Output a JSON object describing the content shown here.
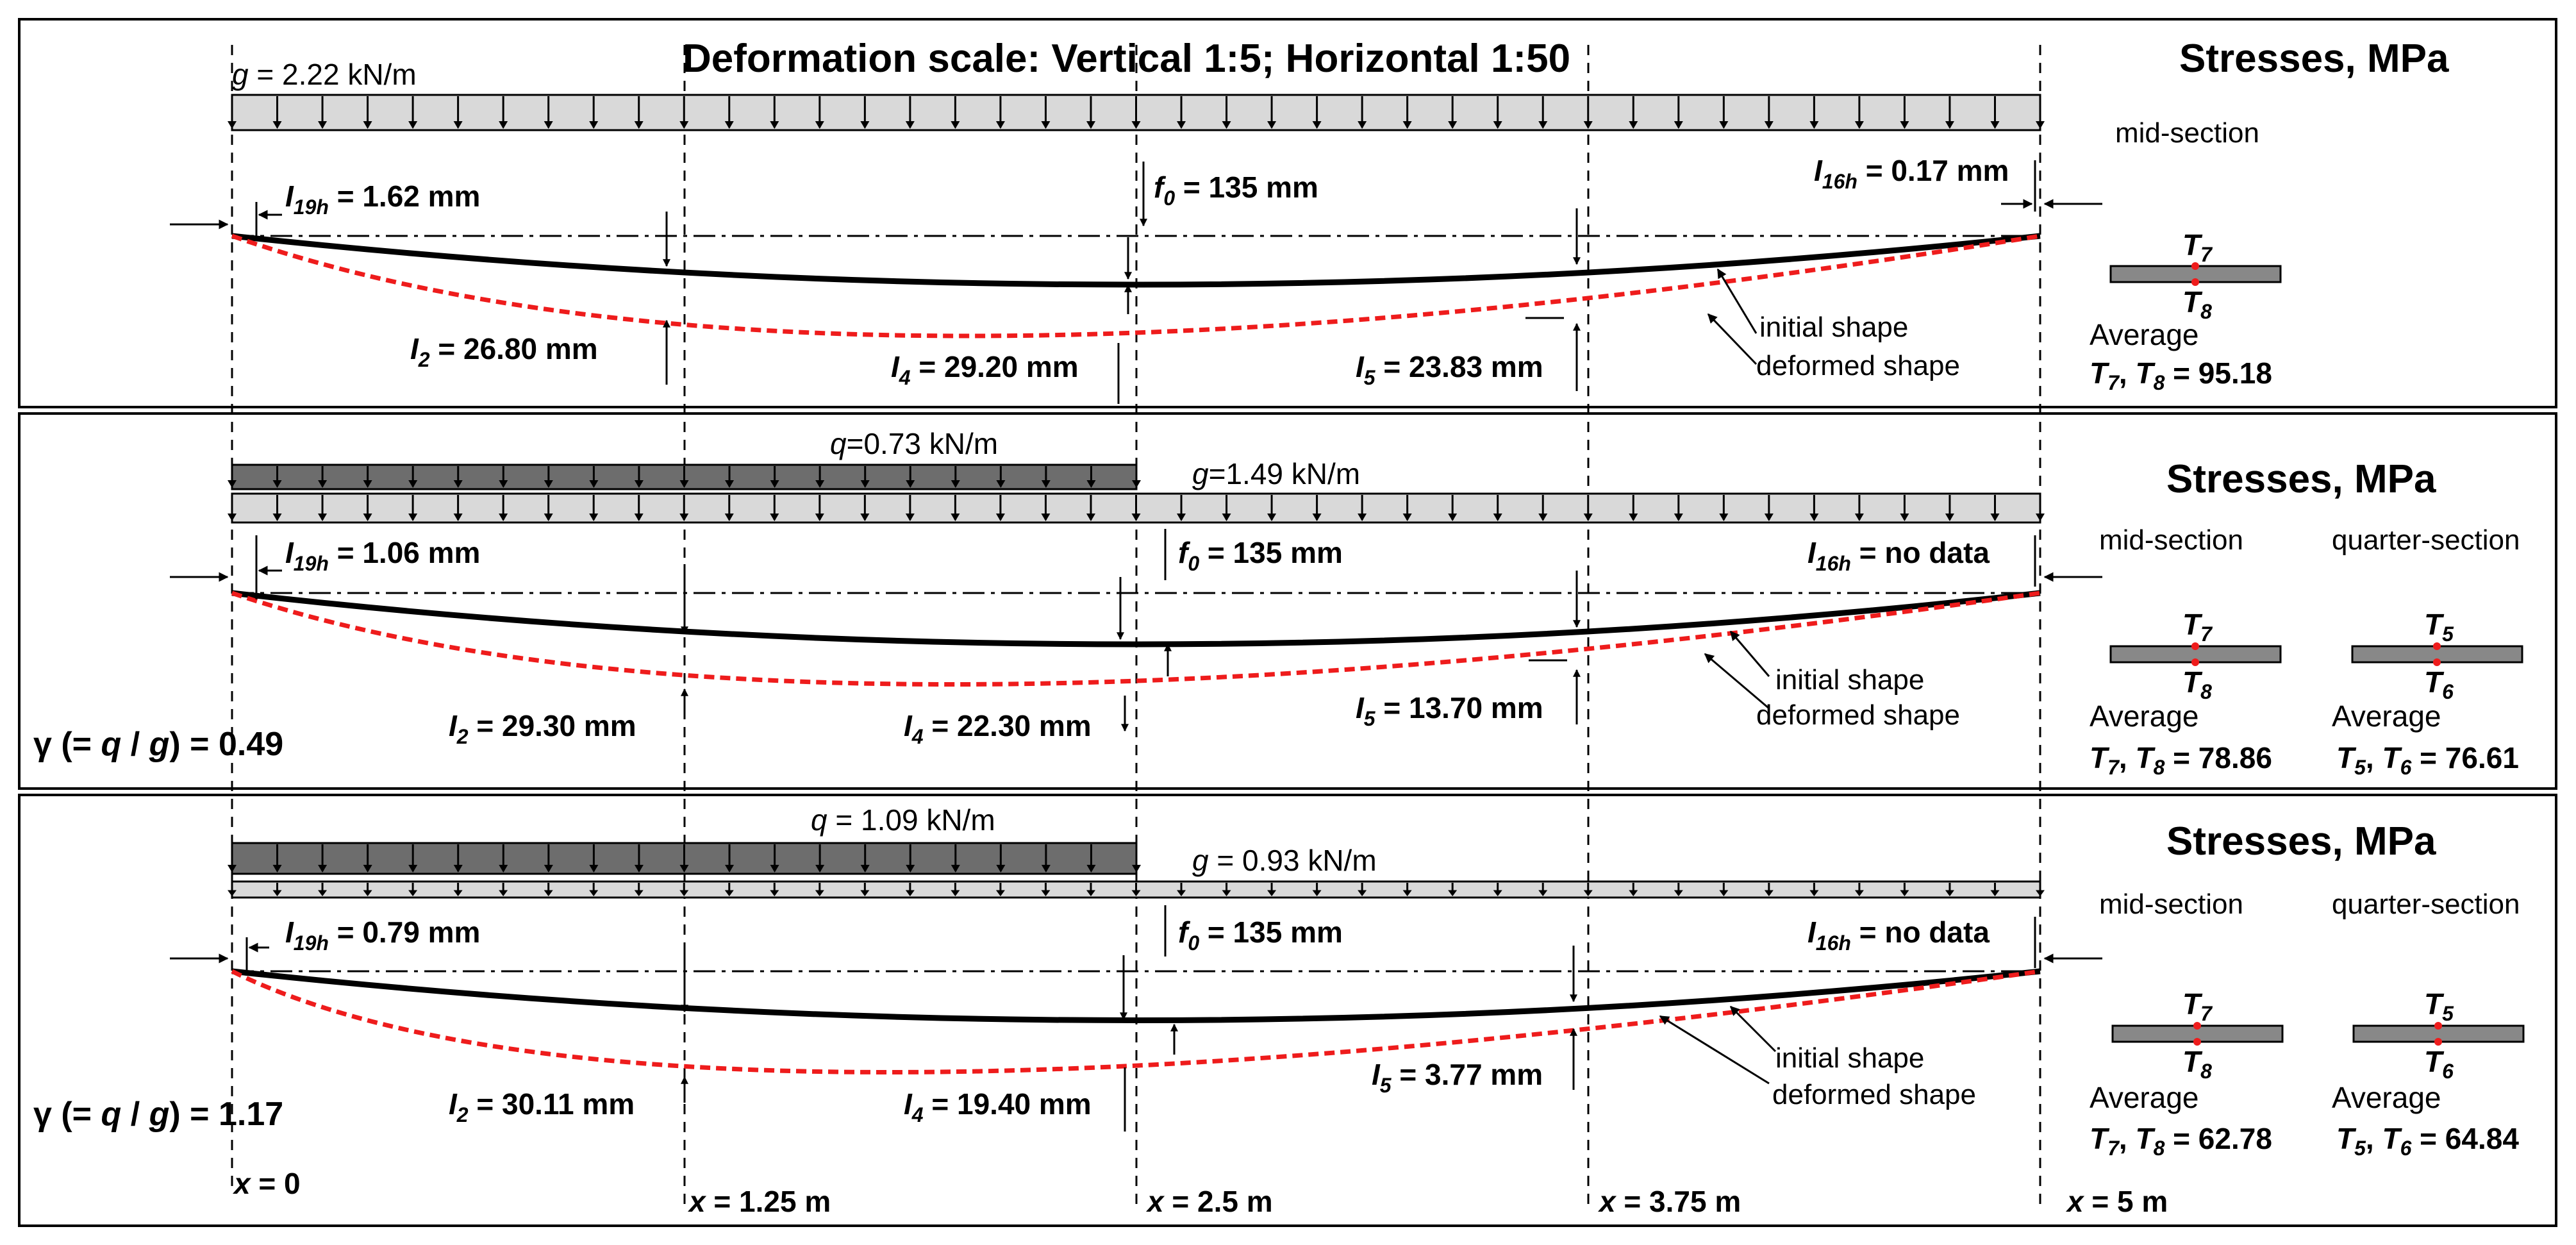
{
  "title": "Deformation scale: Vertical 1:5; Horizontal 1:50",
  "colors": {
    "initial_shape": "#000000",
    "deformed_shape": "#ee1c1c",
    "dead_load_fill": "#d9d9d9",
    "live_load_fill": "#6d6d6d",
    "section_fill": "#888888"
  },
  "labels": {
    "stresses_title": "Stresses, MPa",
    "mid_section": "mid-section",
    "quarter_section": "quarter-section",
    "average": "Average",
    "initial_shape": "initial shape",
    "deformed_shape": "deformed shape",
    "no_data": "no data"
  },
  "x_positions": [
    {
      "var": "x",
      "rest": " = 0"
    },
    {
      "var": "x",
      "rest": " = 1.25 m"
    },
    {
      "var": "x",
      "rest": " = 2.5 m"
    },
    {
      "var": "x",
      "rest": " = 3.75 m"
    },
    {
      "var": "x",
      "rest": " = 5 m"
    }
  ],
  "panels": [
    {
      "g_load": {
        "sym": "g",
        "rest": " = 2.22 kN/m"
      },
      "q_load": null,
      "gamma": null,
      "i19h": {
        "sym": "I",
        "sub": "19h",
        "val": " = 1.62 mm"
      },
      "i16h": {
        "sym": "I",
        "sub": "16h",
        "val": " = 0.17 mm"
      },
      "f0": {
        "sym": "f",
        "sub": "0",
        "val": " = 135 mm"
      },
      "i2": {
        "sym": "I",
        "sub": "2",
        "val": " = 26.80 mm"
      },
      "i4": {
        "sym": "I",
        "sub": "4",
        "val": " = 29.20 mm"
      },
      "i5": {
        "sym": "I",
        "sub": "5",
        "val": " = 23.83 mm"
      },
      "deflections_mm": {
        "x_1_25": 26.8,
        "x_2_5": 29.2,
        "x_3_75": 23.83
      },
      "mid": {
        "top": "T",
        "top_sub": "7",
        "bot": "T",
        "bot_sub": "8",
        "pair_a": "T",
        "pair_a_sub": "7",
        "pair_b": "T",
        "pair_b_sub": "8",
        "value": " = 95.18"
      },
      "quarter": null
    },
    {
      "g_load": {
        "sym": "g",
        "rest": "=1.49 kN/m"
      },
      "q_load": {
        "sym": "q",
        "rest": "=0.73 kN/m"
      },
      "gamma": {
        "text": "γ (= ",
        "q": "q",
        "slash": " / ",
        "g": "g",
        "rest": ") = 0.49"
      },
      "i19h": {
        "sym": "I",
        "sub": "19h",
        "val": " = 1.06 mm"
      },
      "i16h": {
        "sym": "I",
        "sub": "16h",
        "val": " = no data"
      },
      "f0": {
        "sym": "f",
        "sub": "0",
        "val": " = 135 mm"
      },
      "i2": {
        "sym": "I",
        "sub": "2",
        "val": " = 29.30 mm"
      },
      "i4": {
        "sym": "I",
        "sub": "4",
        "val": " = 22.30 mm"
      },
      "i5": {
        "sym": "I",
        "sub": "5",
        "val": " = 13.70 mm"
      },
      "deflections_mm": {
        "x_1_25": 29.3,
        "x_2_5": 22.3,
        "x_3_75": 13.7
      },
      "mid": {
        "top": "T",
        "top_sub": "7",
        "bot": "T",
        "bot_sub": "8",
        "pair_a": "T",
        "pair_a_sub": "7",
        "pair_b": "T",
        "pair_b_sub": "8",
        "value": " = 78.86"
      },
      "quarter": {
        "top": "T",
        "top_sub": "5",
        "bot": "T",
        "bot_sub": "6",
        "pair_a": "T",
        "pair_a_sub": "5",
        "pair_b": "T",
        "pair_b_sub": "6",
        "value": " = 76.61"
      }
    },
    {
      "g_load": {
        "sym": "g",
        "rest": " = 0.93 kN/m"
      },
      "q_load": {
        "sym": "q",
        "rest": " = 1.09 kN/m"
      },
      "gamma": {
        "text": "γ (= ",
        "q": "q",
        "slash": " / ",
        "g": "g",
        "rest": ") = 1.17"
      },
      "i19h": {
        "sym": "I",
        "sub": "19h",
        "val": " = 0.79 mm"
      },
      "i16h": {
        "sym": "I",
        "sub": "16h",
        "val": " = no data"
      },
      "f0": {
        "sym": "f",
        "sub": "0",
        "val": " = 135 mm"
      },
      "i2": {
        "sym": "I",
        "sub": "2",
        "val": " = 30.11 mm"
      },
      "i4": {
        "sym": "I",
        "sub": "4",
        "val": " = 19.40 mm"
      },
      "i5": {
        "sym": "I",
        "sub": "5",
        "val": " = 3.77 mm"
      },
      "deflections_mm": {
        "x_1_25": 30.11,
        "x_2_5": 19.4,
        "x_3_75": 3.77
      },
      "mid": {
        "top": "T",
        "top_sub": "7",
        "bot": "T",
        "bot_sub": "8",
        "pair_a": "T",
        "pair_a_sub": "7",
        "pair_b": "T",
        "pair_b_sub": "8",
        "value": " = 62.78"
      },
      "quarter": {
        "top": "T",
        "top_sub": "5",
        "bot": "T",
        "bot_sub": "6",
        "pair_a": "T",
        "pair_a_sub": "5",
        "pair_b": "T",
        "pair_b_sub": "6",
        "value": " = 64.84"
      }
    }
  ]
}
